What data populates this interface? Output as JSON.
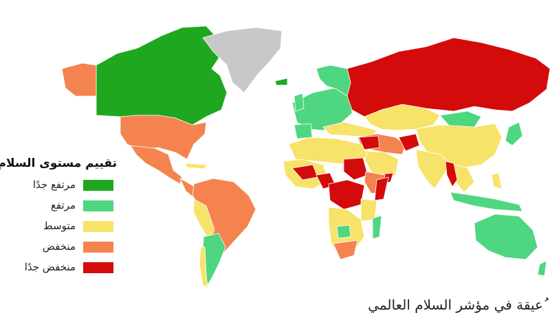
{
  "legend": {
    "title": "تقييم مستوى السلام",
    "items": [
      {
        "label": "مرتفع جدًا",
        "color": "#1fa81f"
      },
      {
        "label": "مرتفع",
        "color": "#4fd680"
      },
      {
        "label": "متوسط",
        "color": "#f7e36a"
      },
      {
        "label": "منخفض",
        "color": "#f5834f"
      },
      {
        "label": "منخفض جدًا",
        "color": "#d40b0b"
      }
    ]
  },
  "no_data_color": "#c8c8c8",
  "top_caption": "",
  "bottom_caption": "ُعيقة في مؤشر السلام العالمي"
}
